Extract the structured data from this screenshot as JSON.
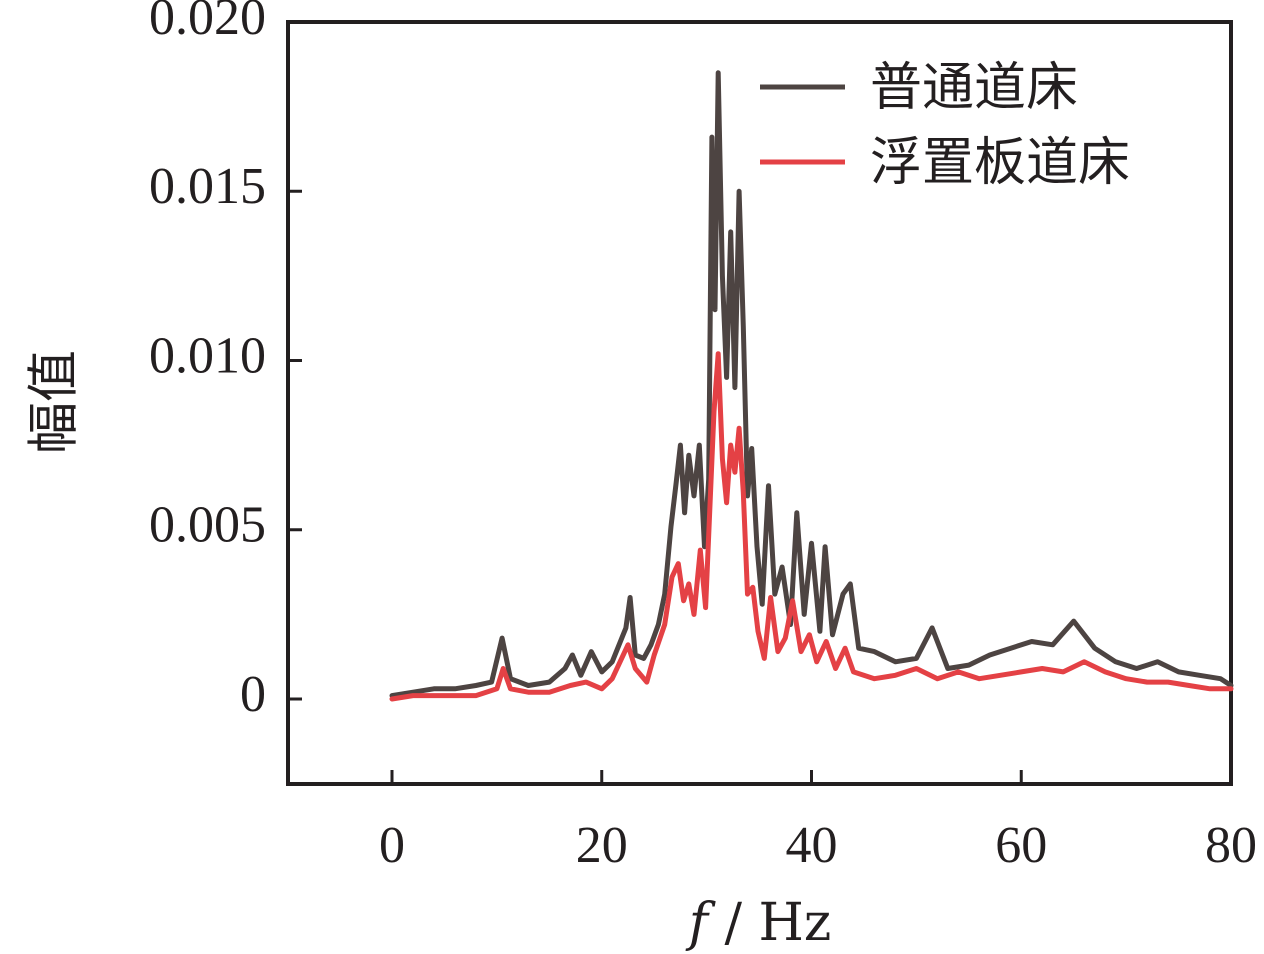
{
  "chart_data": {
    "type": "line",
    "xlabel_var": "f",
    "xlabel_unit": " / Hz",
    "ylabel": "幅值",
    "xlim": [
      -10,
      80
    ],
    "ylim": [
      -0.0025,
      0.02
    ],
    "x_ticks": [
      0,
      20,
      40,
      60,
      80
    ],
    "y_ticks": [
      0,
      0.005,
      0.01,
      0.015,
      0.02
    ],
    "x_tick_labels": [
      "0",
      "20",
      "40",
      "60",
      "80"
    ],
    "y_tick_labels": [
      "0",
      "0.005",
      "0.010",
      "0.015",
      "0.020"
    ],
    "grid": false,
    "legend_position": "top-right",
    "series": [
      {
        "name": "普通道床",
        "color": "#4d4442",
        "points": [
          [
            0,
            0.0001
          ],
          [
            2,
            0.0002
          ],
          [
            4,
            0.0003
          ],
          [
            6,
            0.0003
          ],
          [
            8,
            0.0004
          ],
          [
            9.5,
            0.0005
          ],
          [
            10.5,
            0.0018
          ],
          [
            11.3,
            0.0006
          ],
          [
            13,
            0.0004
          ],
          [
            15,
            0.0005
          ],
          [
            16.5,
            0.0009
          ],
          [
            17.2,
            0.0013
          ],
          [
            18,
            0.0007
          ],
          [
            19,
            0.0014
          ],
          [
            20,
            0.0008
          ],
          [
            21,
            0.0011
          ],
          [
            22.3,
            0.0021
          ],
          [
            22.7,
            0.003
          ],
          [
            23.2,
            0.0013
          ],
          [
            24,
            0.0012
          ],
          [
            24.7,
            0.0016
          ],
          [
            25.4,
            0.0022
          ],
          [
            26,
            0.0031
          ],
          [
            26.6,
            0.0051
          ],
          [
            27.1,
            0.0064
          ],
          [
            27.5,
            0.0075
          ],
          [
            27.9,
            0.0055
          ],
          [
            28.3,
            0.0072
          ],
          [
            28.8,
            0.006
          ],
          [
            29.3,
            0.0075
          ],
          [
            29.8,
            0.0045
          ],
          [
            30.2,
            0.0065
          ],
          [
            30.5,
            0.0166
          ],
          [
            30.8,
            0.0115
          ],
          [
            31.1,
            0.0185
          ],
          [
            31.5,
            0.0125
          ],
          [
            31.9,
            0.0095
          ],
          [
            32.3,
            0.0138
          ],
          [
            32.7,
            0.0092
          ],
          [
            33.1,
            0.015
          ],
          [
            33.5,
            0.011
          ],
          [
            33.9,
            0.006
          ],
          [
            34.3,
            0.0074
          ],
          [
            34.8,
            0.0045
          ],
          [
            35.3,
            0.0028
          ],
          [
            35.9,
            0.0063
          ],
          [
            36.5,
            0.0031
          ],
          [
            37.2,
            0.0039
          ],
          [
            38,
            0.0022
          ],
          [
            38.6,
            0.0055
          ],
          [
            39.3,
            0.0025
          ],
          [
            40,
            0.0046
          ],
          [
            40.8,
            0.002
          ],
          [
            41.3,
            0.0045
          ],
          [
            42,
            0.0019
          ],
          [
            43,
            0.0031
          ],
          [
            43.7,
            0.0034
          ],
          [
            44.5,
            0.0015
          ],
          [
            46,
            0.0014
          ],
          [
            48,
            0.0011
          ],
          [
            50,
            0.0012
          ],
          [
            51.5,
            0.0021
          ],
          [
            53,
            0.0009
          ],
          [
            55,
            0.001
          ],
          [
            57,
            0.0013
          ],
          [
            59,
            0.0015
          ],
          [
            61,
            0.0017
          ],
          [
            63,
            0.0016
          ],
          [
            65,
            0.0023
          ],
          [
            67,
            0.0015
          ],
          [
            69,
            0.0011
          ],
          [
            71,
            0.0009
          ],
          [
            73,
            0.0011
          ],
          [
            75,
            0.0008
          ],
          [
            77,
            0.0007
          ],
          [
            79,
            0.0006
          ],
          [
            80,
            0.0004
          ]
        ]
      },
      {
        "name": "浮置板道床",
        "color": "#e44145",
        "points": [
          [
            0,
            0.0
          ],
          [
            2,
            0.0001
          ],
          [
            4,
            0.0001
          ],
          [
            6,
            0.0001
          ],
          [
            8,
            0.0001
          ],
          [
            10,
            0.0003
          ],
          [
            10.6,
            0.0009
          ],
          [
            11.3,
            0.0003
          ],
          [
            13,
            0.0002
          ],
          [
            15,
            0.0002
          ],
          [
            17,
            0.0004
          ],
          [
            18.5,
            0.0005
          ],
          [
            20,
            0.0003
          ],
          [
            21,
            0.0006
          ],
          [
            22.5,
            0.0016
          ],
          [
            23.2,
            0.0009
          ],
          [
            24.3,
            0.0005
          ],
          [
            25,
            0.0013
          ],
          [
            26,
            0.0022
          ],
          [
            26.7,
            0.0036
          ],
          [
            27.3,
            0.004
          ],
          [
            27.8,
            0.0029
          ],
          [
            28.3,
            0.0034
          ],
          [
            28.8,
            0.0025
          ],
          [
            29.4,
            0.0044
          ],
          [
            29.9,
            0.0027
          ],
          [
            30.3,
            0.0056
          ],
          [
            30.7,
            0.0085
          ],
          [
            31.1,
            0.0102
          ],
          [
            31.5,
            0.0071
          ],
          [
            31.9,
            0.0058
          ],
          [
            32.3,
            0.0075
          ],
          [
            32.7,
            0.0067
          ],
          [
            33.1,
            0.008
          ],
          [
            33.5,
            0.0061
          ],
          [
            33.9,
            0.0031
          ],
          [
            34.4,
            0.0033
          ],
          [
            34.9,
            0.002
          ],
          [
            35.5,
            0.0012
          ],
          [
            36.1,
            0.003
          ],
          [
            36.8,
            0.0014
          ],
          [
            37.5,
            0.0018
          ],
          [
            38.2,
            0.0029
          ],
          [
            39,
            0.0014
          ],
          [
            39.8,
            0.0019
          ],
          [
            40.5,
            0.0011
          ],
          [
            41.4,
            0.0017
          ],
          [
            42.3,
            0.0009
          ],
          [
            43.2,
            0.0015
          ],
          [
            44,
            0.0008
          ],
          [
            46,
            0.0006
          ],
          [
            48,
            0.0007
          ],
          [
            50,
            0.0009
          ],
          [
            52,
            0.0006
          ],
          [
            54,
            0.0008
          ],
          [
            56,
            0.0006
          ],
          [
            58,
            0.0007
          ],
          [
            60,
            0.0008
          ],
          [
            62,
            0.0009
          ],
          [
            64,
            0.0008
          ],
          [
            66,
            0.0011
          ],
          [
            68,
            0.0008
          ],
          [
            70,
            0.0006
          ],
          [
            72,
            0.0005
          ],
          [
            74,
            0.0005
          ],
          [
            76,
            0.0004
          ],
          [
            78,
            0.0003
          ],
          [
            80,
            0.0003
          ]
        ]
      }
    ]
  }
}
